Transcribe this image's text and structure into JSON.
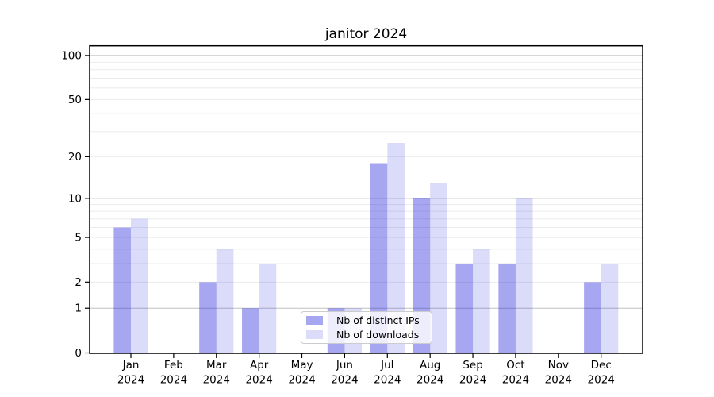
{
  "chart_data": {
    "type": "bar",
    "title": "janitor 2024",
    "xlabel": "",
    "ylabel": "",
    "year_label": "2024",
    "categories": [
      "Jan",
      "Feb",
      "Mar",
      "Apr",
      "May",
      "Jun",
      "Jul",
      "Aug",
      "Sep",
      "Oct",
      "Nov",
      "Dec"
    ],
    "series": [
      {
        "name": "Nb of distinct IPs",
        "values": [
          6,
          0,
          2,
          1,
          0,
          1,
          18,
          10,
          3,
          3,
          0,
          2
        ],
        "bar_fill": "rgba(34,34,221,0.40)",
        "swatch_color": "#a7a7f1"
      },
      {
        "name": "Nb of downloads",
        "values": [
          7,
          0,
          4,
          3,
          0,
          1,
          25,
          13,
          4,
          10,
          0,
          3
        ],
        "bar_fill": "rgba(34,34,221,0.16)",
        "swatch_color": "#dcdcfa"
      }
    ],
    "yscale": "log10(1+y)",
    "yticks": [
      0,
      1,
      2,
      5,
      10,
      20,
      50,
      100
    ],
    "minor_gridlines": [
      2,
      3,
      4,
      5,
      6,
      7,
      8,
      9,
      20,
      30,
      40,
      50,
      60,
      70,
      80,
      90
    ],
    "major_gridlines": [
      1,
      10,
      100
    ],
    "ylim": [
      0,
      116
    ],
    "grid": true,
    "legend_position": "lower center (inside plot)"
  },
  "colors": {
    "background": "#ffffff",
    "spine": "#000000",
    "tick_text": "#000000",
    "minor_grid": "#ebebeb",
    "major_grid": "#c0c0c0",
    "legend_border": "#cccccc"
  }
}
